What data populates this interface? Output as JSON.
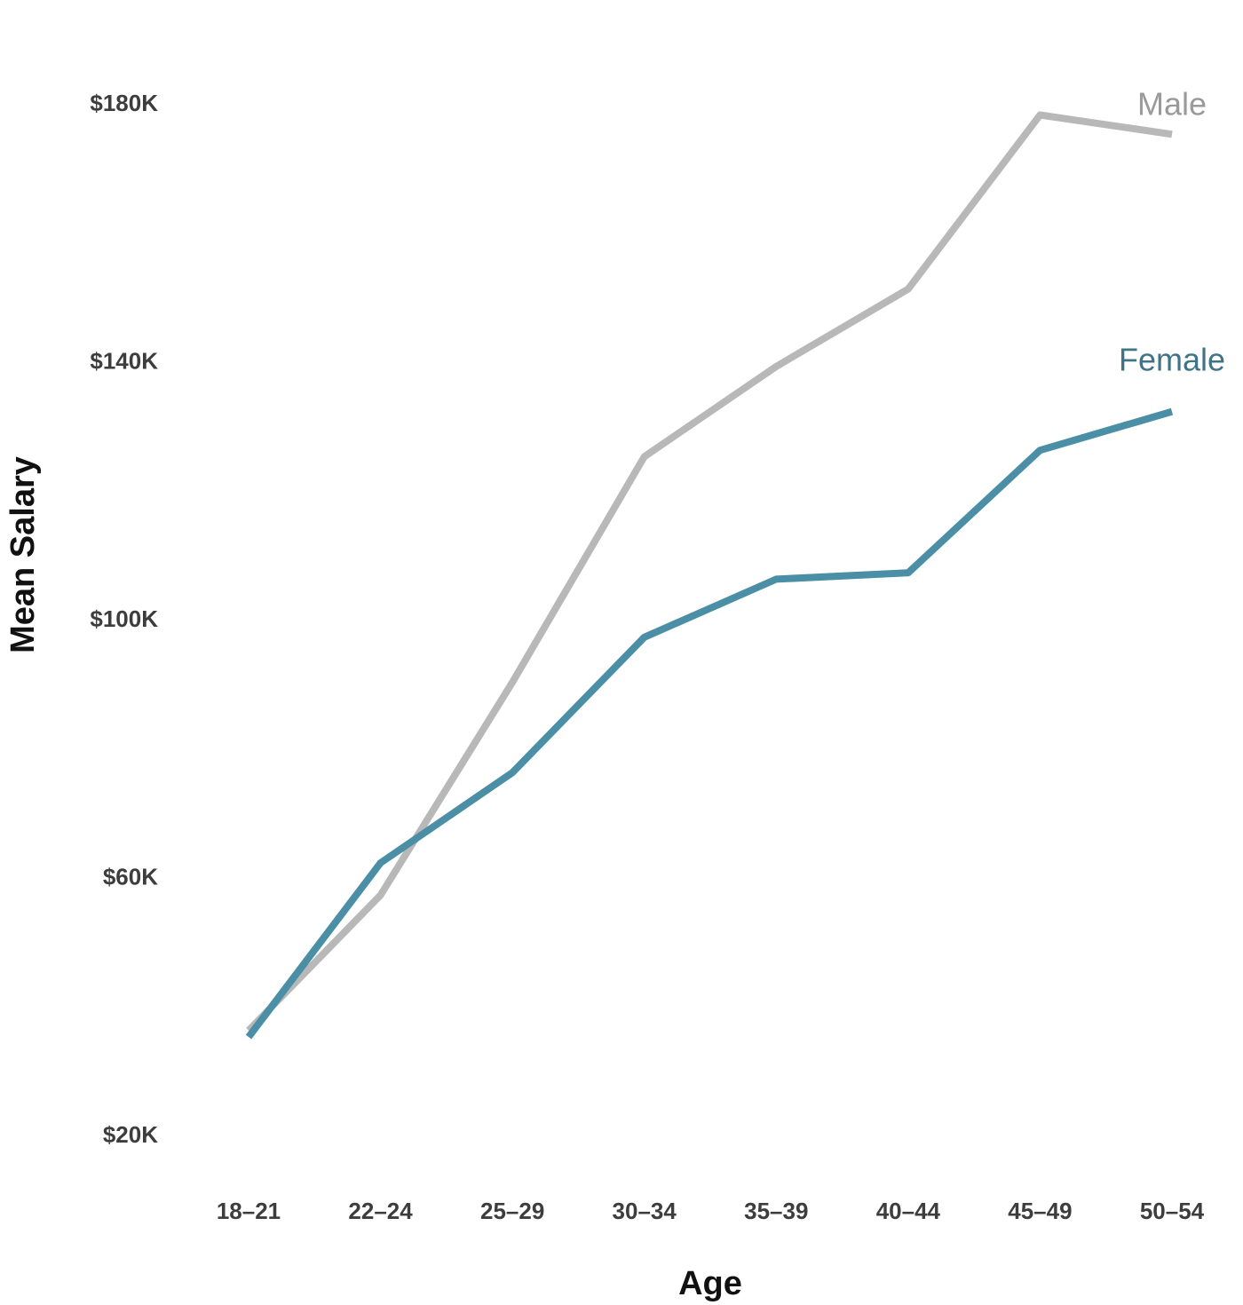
{
  "chart_data": {
    "type": "line",
    "title": "",
    "xlabel": "Age",
    "ylabel": "Mean Salary",
    "categories": [
      "18–21",
      "22–24",
      "25–29",
      "30–34",
      "35–39",
      "40–44",
      "45–49",
      "50–54"
    ],
    "ylim": [
      20000,
      180000
    ],
    "yticks": [
      {
        "value": 20000,
        "label": "$20K"
      },
      {
        "value": 60000,
        "label": "$60K"
      },
      {
        "value": 100000,
        "label": "$100K"
      },
      {
        "value": 140000,
        "label": "$140K"
      },
      {
        "value": 180000,
        "label": "$180K"
      }
    ],
    "grid": false,
    "legend": "inline-right",
    "series": [
      {
        "name": "Male",
        "color": "#b8b8b8",
        "label_color": "#9a9a9a",
        "values": [
          36000,
          57000,
          90000,
          125000,
          139000,
          151000,
          178000,
          175000
        ]
      },
      {
        "name": "Female",
        "color": "#4a8fa6",
        "label_color": "#3f7388",
        "values": [
          35000,
          62000,
          76000,
          97000,
          106000,
          107000,
          126000,
          132000
        ]
      }
    ]
  }
}
